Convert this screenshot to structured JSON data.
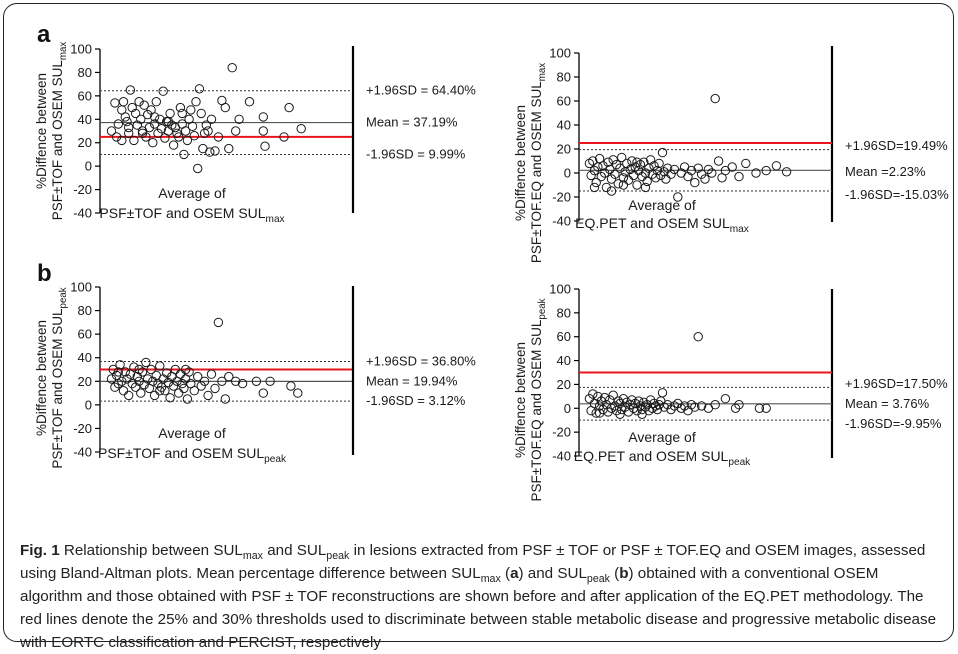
{
  "colors": {
    "threshold": "#e8161c",
    "axis": "#000000",
    "marker_edge": "#1a1a1a"
  },
  "chart_data": [
    {
      "type": "scatter",
      "panel": "a",
      "ylabel": "%Diffence between PSF±TOF and OSEM SULmax",
      "ylabel_line1": "%Diffence between",
      "ylabel_line2_main": "PSF±TOF and OSEM SUL",
      "ylabel_line2_sub": "max",
      "xlabel_line1": "Average of",
      "xlabel_line2_main": "PSF±TOF and OSEM SUL",
      "xlabel_line2_sub": "max",
      "ylim": [
        -40,
        100
      ],
      "yticks": [
        "100",
        "80",
        "60",
        "40",
        "20",
        "0",
        "-20",
        "-40"
      ],
      "mean": 37.19,
      "upper_loa": 64.4,
      "lower_loa": 9.99,
      "threshold": 25,
      "annotations": {
        "upper": "+1.96SD = 64.40%",
        "mean": "Mean = 37.19%",
        "lower": "-1.96SD = 9.99%"
      },
      "points": [
        [
          0.02,
          30
        ],
        [
          0.04,
          54
        ],
        [
          0.05,
          25
        ],
        [
          0.06,
          36
        ],
        [
          0.08,
          48
        ],
        [
          0.09,
          55
        ],
        [
          0.1,
          42
        ],
        [
          0.11,
          38
        ],
        [
          0.12,
          28
        ],
        [
          0.13,
          65
        ],
        [
          0.14,
          50
        ],
        [
          0.15,
          22
        ],
        [
          0.16,
          45
        ],
        [
          0.17,
          35
        ],
        [
          0.18,
          55
        ],
        [
          0.19,
          40
        ],
        [
          0.2,
          30
        ],
        [
          0.21,
          52
        ],
        [
          0.22,
          25
        ],
        [
          0.23,
          44
        ],
        [
          0.24,
          33
        ],
        [
          0.25,
          48
        ],
        [
          0.26,
          20
        ],
        [
          0.27,
          36
        ],
        [
          0.28,
          55
        ],
        [
          0.29,
          28
        ],
        [
          0.3,
          40
        ],
        [
          0.31,
          32
        ],
        [
          0.32,
          64
        ],
        [
          0.33,
          24
        ],
        [
          0.34,
          38
        ],
        [
          0.35,
          30
        ],
        [
          0.36,
          45
        ],
        [
          0.37,
          35
        ],
        [
          0.38,
          18
        ],
        [
          0.39,
          33
        ],
        [
          0.4,
          28
        ],
        [
          0.41,
          25
        ],
        [
          0.42,
          50
        ],
        [
          0.43,
          36
        ],
        [
          0.44,
          10
        ],
        [
          0.45,
          30
        ],
        [
          0.46,
          22
        ],
        [
          0.47,
          40
        ],
        [
          0.48,
          48
        ],
        [
          0.49,
          34
        ],
        [
          0.5,
          26
        ],
        [
          0.51,
          55
        ],
        [
          0.52,
          -2
        ],
        [
          0.53,
          66
        ],
        [
          0.54,
          45
        ],
        [
          0.55,
          15
        ],
        [
          0.56,
          28
        ],
        [
          0.57,
          35
        ],
        [
          0.58,
          30
        ],
        [
          0.59,
          12
        ],
        [
          0.6,
          40
        ],
        [
          0.62,
          13
        ],
        [
          0.64,
          25
        ],
        [
          0.66,
          56
        ],
        [
          0.68,
          50
        ],
        [
          0.7,
          15
        ],
        [
          0.72,
          84
        ],
        [
          0.74,
          30
        ],
        [
          0.76,
          40
        ],
        [
          0.82,
          55
        ],
        [
          0.9,
          30
        ],
        [
          0.9,
          42
        ],
        [
          0.91,
          17
        ],
        [
          1.02,
          25
        ],
        [
          1.05,
          50
        ],
        [
          1.12,
          32
        ],
        [
          0.12,
          33
        ],
        [
          0.2,
          28
        ],
        [
          0.27,
          42
        ],
        [
          0.35,
          38
        ],
        [
          0.08,
          22
        ],
        [
          0.43,
          45
        ]
      ]
    },
    {
      "type": "scatter",
      "panel": "",
      "ylabel": "%Diffence between PSF±TOF.EQ and OSEM SULmax",
      "ylabel_line1": "%Diffence between",
      "ylabel_line2_main": "PSF±TOF.EQ and OSEM SUL",
      "ylabel_line2_sub": "max",
      "xlabel_line1": "Average of",
      "xlabel_line2_main": "EQ.PET and OSEM SUL",
      "xlabel_line2_sub": "max",
      "ylim": [
        -40,
        100
      ],
      "yticks": [
        "100",
        "80",
        "60",
        "40",
        "20",
        "0",
        "-20",
        "-40"
      ],
      "mean": 2.23,
      "upper_loa": 19.49,
      "lower_loa": -15.03,
      "threshold": 25,
      "annotations": {
        "upper": "+1.96SD=19.49%",
        "mean": "Mean =2.23%",
        "lower": "-1.96SD=-15.03%"
      },
      "points": [
        [
          0.02,
          8
        ],
        [
          0.03,
          -2
        ],
        [
          0.04,
          10
        ],
        [
          0.05,
          2
        ],
        [
          0.06,
          -8
        ],
        [
          0.07,
          5
        ],
        [
          0.08,
          12
        ],
        [
          0.09,
          -3
        ],
        [
          0.1,
          6
        ],
        [
          0.11,
          0
        ],
        [
          0.12,
          -12
        ],
        [
          0.13,
          9
        ],
        [
          0.14,
          3
        ],
        [
          0.15,
          -5
        ],
        [
          0.16,
          11
        ],
        [
          0.17,
          -1
        ],
        [
          0.18,
          7
        ],
        [
          0.19,
          -9
        ],
        [
          0.2,
          4
        ],
        [
          0.21,
          13
        ],
        [
          0.22,
          -4
        ],
        [
          0.23,
          1
        ],
        [
          0.24,
          8
        ],
        [
          0.25,
          -6
        ],
        [
          0.26,
          3
        ],
        [
          0.27,
          10
        ],
        [
          0.28,
          -2
        ],
        [
          0.29,
          5
        ],
        [
          0.3,
          -10
        ],
        [
          0.31,
          2
        ],
        [
          0.32,
          7
        ],
        [
          0.33,
          -3
        ],
        [
          0.34,
          9
        ],
        [
          0.35,
          0
        ],
        [
          0.36,
          -7
        ],
        [
          0.37,
          4
        ],
        [
          0.38,
          11
        ],
        [
          0.39,
          -1
        ],
        [
          0.4,
          6
        ],
        [
          0.41,
          -4
        ],
        [
          0.42,
          2
        ],
        [
          0.43,
          8
        ],
        [
          0.44,
          -2
        ],
        [
          0.45,
          17
        ],
        [
          0.46,
          1
        ],
        [
          0.47,
          -5
        ],
        [
          0.48,
          4
        ],
        [
          0.5,
          -1
        ],
        [
          0.52,
          3
        ],
        [
          0.54,
          -20
        ],
        [
          0.56,
          0
        ],
        [
          0.58,
          5
        ],
        [
          0.6,
          -3
        ],
        [
          0.62,
          2
        ],
        [
          0.64,
          -8
        ],
        [
          0.66,
          4
        ],
        [
          0.68,
          -1
        ],
        [
          0.7,
          -5
        ],
        [
          0.72,
          3
        ],
        [
          0.74,
          0
        ],
        [
          0.76,
          62
        ],
        [
          0.78,
          10
        ],
        [
          0.8,
          -4
        ],
        [
          0.82,
          2
        ],
        [
          0.86,
          5
        ],
        [
          0.9,
          -3
        ],
        [
          0.94,
          8
        ],
        [
          1.0,
          0
        ],
        [
          1.06,
          2
        ],
        [
          1.12,
          6
        ],
        [
          1.18,
          1
        ],
        [
          0.15,
          -15
        ],
        [
          0.22,
          -10
        ],
        [
          0.3,
          9
        ],
        [
          0.05,
          -12
        ],
        [
          0.35,
          -12
        ]
      ]
    },
    {
      "type": "scatter",
      "panel": "b",
      "ylabel": "%Diffence between PSF±TOF and OSEM SULpeak",
      "ylabel_line1": "%Diffence between",
      "ylabel_line2_main": "PSF±TOF and OSEM SUL",
      "ylabel_line2_sub": "peak",
      "xlabel_line1": "Average of",
      "xlabel_line2_main": "PSF±TOF and OSEM SUL",
      "xlabel_line2_sub": "peak",
      "ylim": [
        -40,
        100
      ],
      "yticks": [
        "100",
        "80",
        "60",
        "40",
        "20",
        "0",
        "-20",
        "-40"
      ],
      "mean": 19.94,
      "upper_loa": 36.8,
      "lower_loa": 3.12,
      "threshold": 30,
      "annotations": {
        "upper": "+1.96SD = 36.80%",
        "mean": "Mean = 19.94%",
        "lower": "-1.96SD = 3.12%"
      },
      "points": [
        [
          0.02,
          22
        ],
        [
          0.03,
          30
        ],
        [
          0.04,
          15
        ],
        [
          0.05,
          25
        ],
        [
          0.06,
          18
        ],
        [
          0.07,
          34
        ],
        [
          0.08,
          20
        ],
        [
          0.09,
          12
        ],
        [
          0.1,
          28
        ],
        [
          0.11,
          22
        ],
        [
          0.12,
          8
        ],
        [
          0.13,
          26
        ],
        [
          0.14,
          18
        ],
        [
          0.15,
          32
        ],
        [
          0.16,
          15
        ],
        [
          0.17,
          24
        ],
        [
          0.18,
          20
        ],
        [
          0.19,
          10
        ],
        [
          0.2,
          28
        ],
        [
          0.21,
          17
        ],
        [
          0.22,
          36
        ],
        [
          0.23,
          22
        ],
        [
          0.24,
          14
        ],
        [
          0.25,
          30
        ],
        [
          0.26,
          20
        ],
        [
          0.27,
          8
        ],
        [
          0.28,
          25
        ],
        [
          0.29,
          18
        ],
        [
          0.3,
          33
        ],
        [
          0.31,
          15
        ],
        [
          0.32,
          22
        ],
        [
          0.33,
          12
        ],
        [
          0.34,
          27
        ],
        [
          0.35,
          19
        ],
        [
          0.36,
          6
        ],
        [
          0.37,
          24
        ],
        [
          0.38,
          16
        ],
        [
          0.39,
          30
        ],
        [
          0.4,
          20
        ],
        [
          0.41,
          10
        ],
        [
          0.42,
          26
        ],
        [
          0.43,
          18
        ],
        [
          0.44,
          14
        ],
        [
          0.45,
          22
        ],
        [
          0.46,
          5
        ],
        [
          0.47,
          28
        ],
        [
          0.48,
          18
        ],
        [
          0.5,
          12
        ],
        [
          0.52,
          24
        ],
        [
          0.54,
          16
        ],
        [
          0.56,
          20
        ],
        [
          0.58,
          8
        ],
        [
          0.6,
          26
        ],
        [
          0.62,
          14
        ],
        [
          0.64,
          70
        ],
        [
          0.66,
          20
        ],
        [
          0.68,
          5
        ],
        [
          0.7,
          24
        ],
        [
          0.74,
          20
        ],
        [
          0.78,
          18
        ],
        [
          0.86,
          20
        ],
        [
          0.9,
          10
        ],
        [
          0.94,
          20
        ],
        [
          1.06,
          16
        ],
        [
          1.1,
          10
        ],
        [
          0.06,
          28
        ],
        [
          0.18,
          30
        ],
        [
          0.3,
          12
        ],
        [
          0.45,
          30
        ]
      ]
    },
    {
      "type": "scatter",
      "panel": "",
      "ylabel": "%Diffence between PSF±TOF.EQ and OSEM SULpeak",
      "ylabel_line1": "%Diffence between",
      "ylabel_line2_main": "PSF±TOF.EQ and OSEM SUL",
      "ylabel_line2_sub": "peak",
      "xlabel_line1": "Average of",
      "xlabel_line2_main": "EQ.PET and OSEM SUL",
      "xlabel_line2_sub": "peak",
      "ylim": [
        -40,
        100
      ],
      "yticks": [
        "100",
        "80",
        "60",
        "40",
        "20",
        "0",
        "-20",
        "-40"
      ],
      "mean": 3.76,
      "upper_loa": 17.5,
      "lower_loa": -9.95,
      "threshold": 30,
      "annotations": {
        "upper": "+1.96SD=17.50%",
        "mean": "Mean = 3.76%",
        "lower": "-1.96SD=-9.95%"
      },
      "points": [
        [
          0.02,
          8
        ],
        [
          0.03,
          -2
        ],
        [
          0.04,
          12
        ],
        [
          0.05,
          4
        ],
        [
          0.06,
          -4
        ],
        [
          0.07,
          10
        ],
        [
          0.08,
          2
        ],
        [
          0.09,
          6
        ],
        [
          0.1,
          -1
        ],
        [
          0.11,
          9
        ],
        [
          0.12,
          3
        ],
        [
          0.13,
          -3
        ],
        [
          0.14,
          7
        ],
        [
          0.15,
          0
        ],
        [
          0.16,
          11
        ],
        [
          0.17,
          2
        ],
        [
          0.18,
          -2
        ],
        [
          0.19,
          6
        ],
        [
          0.2,
          4
        ],
        [
          0.21,
          -1
        ],
        [
          0.22,
          8
        ],
        [
          0.23,
          1
        ],
        [
          0.24,
          5
        ],
        [
          0.25,
          -3
        ],
        [
          0.26,
          3
        ],
        [
          0.27,
          7
        ],
        [
          0.28,
          0
        ],
        [
          0.29,
          4
        ],
        [
          0.3,
          -2
        ],
        [
          0.31,
          6
        ],
        [
          0.32,
          2
        ],
        [
          0.33,
          -1
        ],
        [
          0.34,
          5
        ],
        [
          0.35,
          1
        ],
        [
          0.36,
          3
        ],
        [
          0.37,
          -2
        ],
        [
          0.38,
          7
        ],
        [
          0.39,
          0
        ],
        [
          0.4,
          4
        ],
        [
          0.41,
          2
        ],
        [
          0.42,
          -1
        ],
        [
          0.43,
          3
        ],
        [
          0.44,
          6
        ],
        [
          0.45,
          13
        ],
        [
          0.46,
          1
        ],
        [
          0.48,
          3
        ],
        [
          0.5,
          -1
        ],
        [
          0.52,
          2
        ],
        [
          0.54,
          4
        ],
        [
          0.56,
          0
        ],
        [
          0.58,
          2
        ],
        [
          0.6,
          -2
        ],
        [
          0.62,
          3
        ],
        [
          0.64,
          1
        ],
        [
          0.66,
          60
        ],
        [
          0.68,
          2
        ],
        [
          0.72,
          0
        ],
        [
          0.76,
          3
        ],
        [
          0.82,
          8
        ],
        [
          0.88,
          0
        ],
        [
          0.9,
          3
        ],
        [
          1.02,
          0
        ],
        [
          1.06,
          0
        ],
        [
          0.08,
          -4
        ],
        [
          0.2,
          -5
        ],
        [
          0.33,
          -5
        ]
      ]
    }
  ],
  "caption": {
    "label": "Fig. 1",
    "parts": [
      " Relationship between SUL",
      "max",
      " and SUL",
      "peak",
      " in lesions extracted from PSF ± TOF or PSF ± TOF.EQ and OSEM images, assessed using Bland-Altman plots. Mean percentage difference between SUL",
      "max",
      " (",
      "a",
      ") and SUL",
      "peak",
      " (",
      "b",
      ") obtained with a conventional OSEM algorithm and those obtained with PSF ± TOF reconstructions are shown before and after application of the EQ.PET methodology. The red lines denote the 25% and 30% thresholds used to discriminate between stable metabolic disease and progressive metabolic disease with EORTC classification and PERCIST, respectively"
    ]
  }
}
